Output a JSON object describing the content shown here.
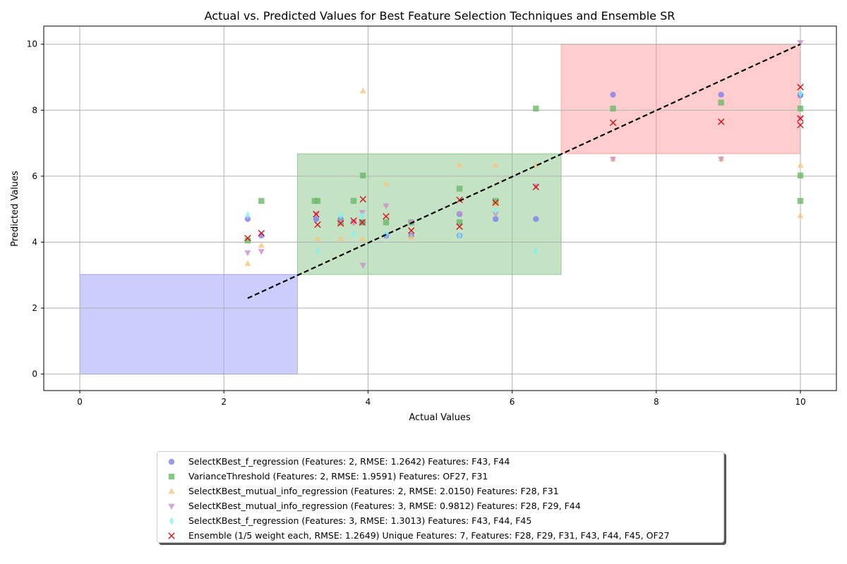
{
  "chart_data": {
    "type": "scatter",
    "title": "Actual vs. Predicted Values for Best Feature Selection Techniques and Ensemble SR",
    "xlabel": "Actual Values",
    "ylabel": "Predicted Values",
    "xlim": [
      -0.5,
      10.5
    ],
    "ylim": [
      -0.5,
      10.55
    ],
    "xticks": [
      0,
      2,
      4,
      6,
      8,
      10
    ],
    "yticks": [
      0,
      2,
      4,
      6,
      8,
      10
    ],
    "grid": true,
    "legend_position": "bottom-center",
    "regions": [
      {
        "x": [
          0,
          3.02
        ],
        "y": [
          0,
          3.02
        ],
        "color": "#6666ff"
      },
      {
        "x": [
          3.02,
          6.68
        ],
        "y": [
          3.02,
          6.68
        ],
        "color": "#4ca64c"
      },
      {
        "x": [
          6.68,
          10
        ],
        "y": [
          6.68,
          10
        ],
        "color": "#ff6666"
      }
    ],
    "reference_line": {
      "x": [
        2.33,
        10
      ],
      "y": [
        2.3,
        10
      ],
      "style": "dashed",
      "color": "#000000"
    },
    "series": [
      {
        "name": "SelectKBest_f_regression (Features: 2, RMSE: 1.2642) Features: F43, F44",
        "marker": "circle",
        "color": "#7f7fea",
        "x": [
          2.33,
          2.52,
          3.28,
          3.62,
          3.8,
          3.92,
          3.93,
          4.25,
          4.6,
          5.27,
          5.27,
          5.77,
          6.33,
          7.4,
          8.9,
          10,
          10
        ],
        "y": [
          4.7,
          4.2,
          4.7,
          4.7,
          4.6,
          4.6,
          4.6,
          4.2,
          4.2,
          4.2,
          4.85,
          4.7,
          4.7,
          8.47,
          8.47,
          8.47,
          8.45
        ]
      },
      {
        "name": "VarianceThreshold (Features: 2, RMSE: 1.9591) Features: OF27, F31",
        "marker": "square",
        "color": "#6ab96a",
        "x": [
          2.33,
          2.52,
          3.26,
          3.3,
          3.62,
          3.8,
          3.92,
          3.93,
          4.25,
          4.6,
          5.27,
          5.27,
          5.77,
          6.33,
          7.4,
          8.9,
          10,
          10,
          10
        ],
        "y": [
          4.05,
          5.25,
          5.25,
          5.25,
          4.6,
          5.25,
          4.6,
          6.02,
          4.6,
          4.6,
          5.62,
          4.6,
          5.25,
          8.05,
          8.05,
          8.23,
          8.05,
          6.02,
          5.25
        ]
      },
      {
        "name": "SelectKBest_mutual_info_regression (Features: 2, RMSE: 2.0150) Features: F28, F31",
        "marker": "triangle-up",
        "color": "#f2c880",
        "x": [
          2.33,
          2.52,
          3.3,
          3.62,
          3.8,
          3.92,
          3.93,
          4.25,
          4.6,
          5.27,
          5.77,
          5.77,
          6.33,
          7.4,
          8.9,
          10,
          10
        ],
        "y": [
          3.35,
          3.9,
          4.1,
          4.1,
          4.6,
          4.1,
          8.58,
          5.77,
          4.15,
          6.33,
          6.33,
          5.15,
          6.33,
          6.52,
          6.52,
          6.33,
          4.8
        ]
      },
      {
        "name": "SelectKBest_mutual_info_regression (Features: 3, RMSE: 0.9812) Features: F28, F29, F44",
        "marker": "triangle-down",
        "color": "#c990cc",
        "x": [
          2.33,
          2.52,
          3.28,
          3.62,
          3.8,
          3.92,
          3.93,
          4.25,
          4.6,
          5.27,
          5.77,
          6.33,
          7.4,
          8.9,
          10,
          10
        ],
        "y": [
          3.68,
          3.72,
          4.85,
          4.6,
          4.6,
          4.9,
          3.3,
          5.1,
          4.6,
          4.85,
          4.85,
          5.7,
          6.52,
          6.52,
          10.05,
          7.75
        ]
      },
      {
        "name": "SelectKBest_f_regression (Features: 3, RMSE: 1.3013) Features: F43, F44, F45",
        "marker": "diamond",
        "color": "#7ff4f0",
        "x": [
          2.33,
          3.3,
          3.62,
          3.8,
          3.92,
          4.25,
          5.27,
          5.77,
          6.33,
          10
        ],
        "y": [
          4.82,
          3.72,
          4.8,
          4.25,
          4.8,
          4.25,
          4.2,
          4.95,
          3.72,
          8.5
        ]
      },
      {
        "name": "Ensemble (1/5 weight each, RMSE: 1.2649) Unique Features: 7, Features: F28, F29, F31, F43, F44, F45, OF27",
        "marker": "x",
        "color": "#e01010",
        "x": [
          2.33,
          2.52,
          3.28,
          3.3,
          3.62,
          3.8,
          3.92,
          3.93,
          4.25,
          4.6,
          5.27,
          5.27,
          5.77,
          6.33,
          7.4,
          8.9,
          10,
          10,
          10
        ],
        "y": [
          4.12,
          4.27,
          4.85,
          4.53,
          4.57,
          4.65,
          4.6,
          5.3,
          4.78,
          4.35,
          5.28,
          4.47,
          5.2,
          5.67,
          7.62,
          7.65,
          8.7,
          7.55,
          7.75
        ]
      }
    ]
  }
}
